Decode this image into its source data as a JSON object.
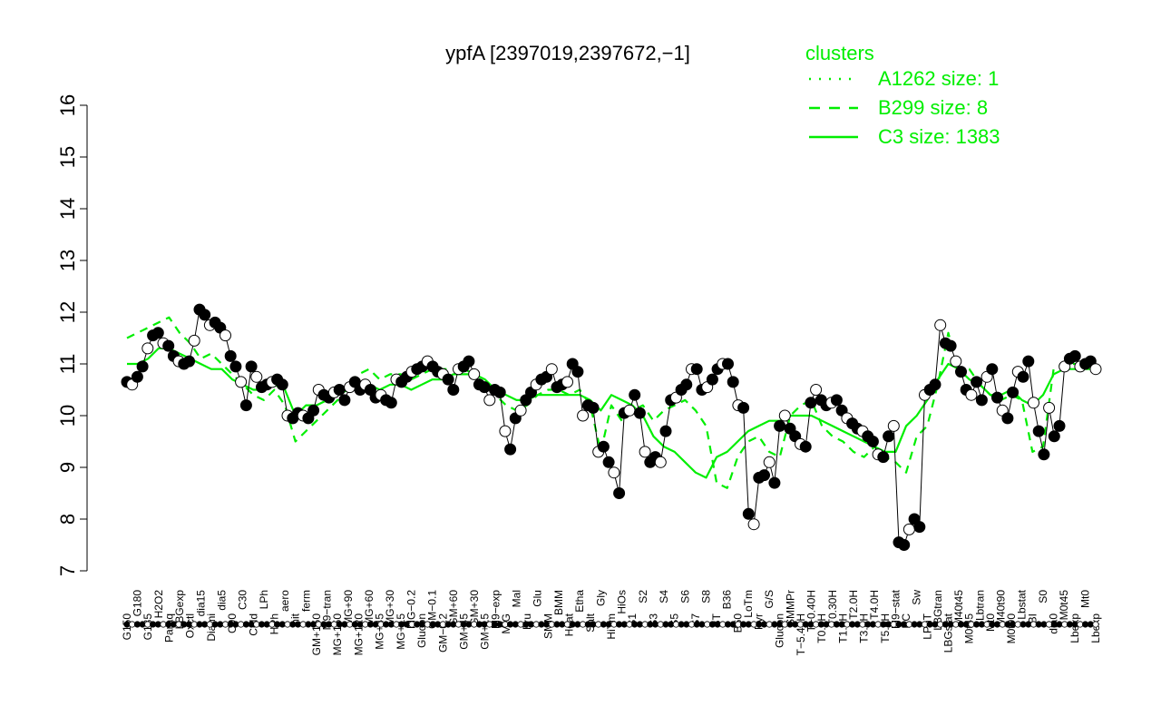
{
  "chart_data": {
    "type": "line",
    "title": "ypfA [2397019,2397672,−1]",
    "xlabel": "",
    "ylabel": "",
    "ylim": [
      7,
      16
    ],
    "yticks": [
      7,
      8,
      9,
      10,
      11,
      12,
      13,
      14,
      15,
      16
    ],
    "grid": false,
    "legend": {
      "title": "clusters",
      "position": "top-right",
      "entries": [
        {
          "label": "A1262 size: 1",
          "style": "dotted"
        },
        {
          "label": "B299 size: 8",
          "style": "dashed"
        },
        {
          "label": "C3 size: 1383",
          "style": "solid"
        }
      ]
    },
    "colors": {
      "cluster": "#00ee00",
      "points": "#000000"
    },
    "x_tick_labels": [
      "G150",
      "G180",
      "G135",
      "H2O2",
      "Paraq",
      "LBGexp",
      "Oxctl",
      "dia15",
      "Diami",
      "dia5",
      "C90",
      "C30",
      "Cold",
      "LPh",
      "HPh",
      "aero",
      "nit",
      "ferm",
      "GM+150",
      "M9−tran",
      "MG+150",
      "MG+90",
      "MG+120",
      "MG+60",
      "MG+45",
      "MG+30",
      "MG+15",
      "MG−0.2",
      "Glucon",
      "GM−0.1",
      "GM−0.2",
      "GM+60",
      "GM+45",
      "GM+30",
      "GM+15",
      "M9−exp",
      "M/G",
      "Mal",
      "Fru",
      "Glu",
      "SMM",
      "BMM",
      "Heat",
      "Etha",
      "Salt",
      "Gly",
      "HiTm",
      "HiOs",
      "S1",
      "S2",
      "S3",
      "S4",
      "S5",
      "S6",
      "S7",
      "S8",
      "BT",
      "B36",
      "B60",
      "LoTm",
      "Pyr",
      "G/S",
      "Glucon",
      "SMMPr",
      "T−5.40H",
      "T−0.40H",
      "T0.0H",
      "T0.30H",
      "T1.0H",
      "T2.0H",
      "T3.0H",
      "T4.0H",
      "T5.0H",
      "M9−stat",
      "BC",
      "Sw",
      "LPhT",
      "LBGtran",
      "LBGstat",
      "M40t45",
      "M0t45",
      "Lbtran",
      "Mt0",
      "M40t90",
      "M0t90",
      "Lbstat",
      "BI",
      "S0",
      "dia0",
      "M0t45",
      "Lbexp",
      "Mt0",
      "Lbexp"
    ],
    "series": [
      {
        "style": "solid",
        "values": [
          11.0,
          11.0,
          11.1,
          11.3,
          11.3,
          11.2,
          11.1,
          11.0,
          10.9,
          10.9,
          10.7,
          10.6,
          10.5,
          10.5,
          10.6,
          10.5,
          10.0,
          10.2,
          10.2,
          10.3,
          10.4,
          10.5,
          10.6,
          10.6,
          10.5,
          10.6,
          10.6,
          10.5,
          10.6,
          10.7,
          10.7,
          10.8,
          10.8,
          10.8,
          10.7,
          10.5,
          10.4,
          10.3,
          10.3,
          10.4,
          10.4,
          10.4,
          10.4,
          10.4,
          10.3,
          10.1,
          10.4,
          10.3,
          10.2,
          10.0,
          9.6,
          9.4,
          9.3,
          9.1,
          8.9,
          8.8,
          9.2,
          9.3,
          9.5,
          9.7,
          9.8,
          9.9,
          9.9,
          10.0,
          10.0,
          10.0,
          9.9,
          9.8,
          9.7,
          9.6,
          9.5,
          9.4,
          9.3,
          9.3,
          9.8,
          10.0,
          10.3,
          10.7,
          11.0,
          10.9,
          10.7,
          10.6,
          10.4,
          10.4,
          10.5,
          10.3,
          10.2,
          10.4,
          10.8,
          10.9,
          10.9,
          10.9,
          10.9
        ]
      },
      {
        "style": "dashed",
        "values": [
          11.5,
          11.6,
          11.7,
          11.8,
          11.9,
          11.6,
          11.4,
          11.1,
          11.2,
          11.0,
          10.8,
          10.6,
          10.4,
          10.3,
          10.5,
          10.2,
          9.5,
          9.7,
          9.9,
          10.1,
          10.3,
          10.6,
          10.8,
          10.9,
          10.7,
          10.8,
          10.8,
          10.7,
          10.8,
          10.9,
          10.9,
          10.9,
          10.9,
          10.8,
          10.6,
          10.4,
          10.2,
          10.1,
          10.2,
          10.4,
          10.5,
          10.5,
          10.4,
          10.5,
          10.2,
          9.3,
          10.2,
          9.9,
          10.1,
          10.2,
          9.9,
          10.1,
          10.2,
          10.3,
          10.1,
          9.8,
          8.7,
          8.6,
          9.2,
          9.5,
          9.6,
          9.3,
          9.2,
          10.0,
          10.2,
          10.3,
          9.8,
          9.6,
          9.5,
          9.3,
          9.2,
          9.4,
          9.2,
          9.1,
          8.9,
          9.6,
          9.8,
          10.6,
          11.6,
          10.8,
          10.9,
          10.6,
          10.4,
          10.3,
          10.4,
          10.3,
          9.3,
          9.4,
          10.9,
          11.0,
          11.0,
          11.0,
          11.0
        ]
      }
    ],
    "points": [
      10.65,
      10.6,
      10.75,
      10.95,
      11.3,
      11.55,
      11.6,
      11.4,
      11.35,
      11.15,
      11.05,
      11.0,
      11.05,
      11.45,
      12.05,
      11.95,
      11.75,
      11.8,
      11.7,
      11.55,
      11.15,
      10.95,
      10.65,
      10.2,
      10.95,
      10.75,
      10.55,
      10.6,
      10.65,
      10.7,
      10.6,
      10.0,
      9.95,
      10.05,
      10.0,
      9.95,
      10.1,
      10.5,
      10.4,
      10.35,
      10.45,
      10.5,
      10.3,
      10.55,
      10.65,
      10.5,
      10.6,
      10.5,
      10.35,
      10.4,
      10.3,
      10.25,
      10.7,
      10.65,
      10.75,
      10.85,
      10.9,
      10.95,
      11.05,
      10.95,
      10.85,
      10.8,
      10.7,
      10.5,
      10.9,
      10.95,
      11.05,
      10.8,
      10.6,
      10.55,
      10.3,
      10.5,
      10.45,
      9.7,
      9.35,
      9.95,
      10.1,
      10.3,
      10.45,
      10.6,
      10.7,
      10.75,
      10.9,
      10.55,
      10.6,
      10.65,
      11.0,
      10.85,
      10.0,
      10.2,
      10.15,
      9.3,
      9.4,
      9.1,
      8.9,
      8.5,
      10.05,
      10.1,
      10.4,
      10.05,
      9.3,
      9.1,
      9.2,
      9.1,
      9.7,
      10.3,
      10.35,
      10.5,
      10.6,
      10.9,
      10.9,
      10.5,
      10.55,
      10.7,
      10.9,
      11.0,
      11.0,
      10.65,
      10.2,
      10.15,
      8.1,
      7.9,
      8.8,
      8.85,
      9.1,
      8.7,
      9.8,
      10.0,
      9.75,
      9.6,
      9.45,
      9.4,
      10.25,
      10.5,
      10.3,
      10.2,
      10.25,
      10.3,
      10.1,
      9.95,
      9.85,
      9.75,
      9.7,
      9.6,
      9.5,
      9.25,
      9.2,
      9.6,
      9.8,
      7.55,
      7.5,
      7.8,
      8.0,
      7.85,
      10.4,
      10.5,
      10.6,
      11.75,
      11.4,
      11.35,
      11.05,
      10.85,
      10.5,
      10.4,
      10.65,
      10.3,
      10.75,
      10.9,
      10.35,
      10.1,
      9.95,
      10.45,
      10.85,
      10.75,
      11.05,
      10.25,
      9.7,
      9.25,
      10.15,
      9.6,
      9.8,
      10.95,
      11.1,
      11.15,
      10.95,
      11.0,
      11.05,
      10.9
    ]
  }
}
